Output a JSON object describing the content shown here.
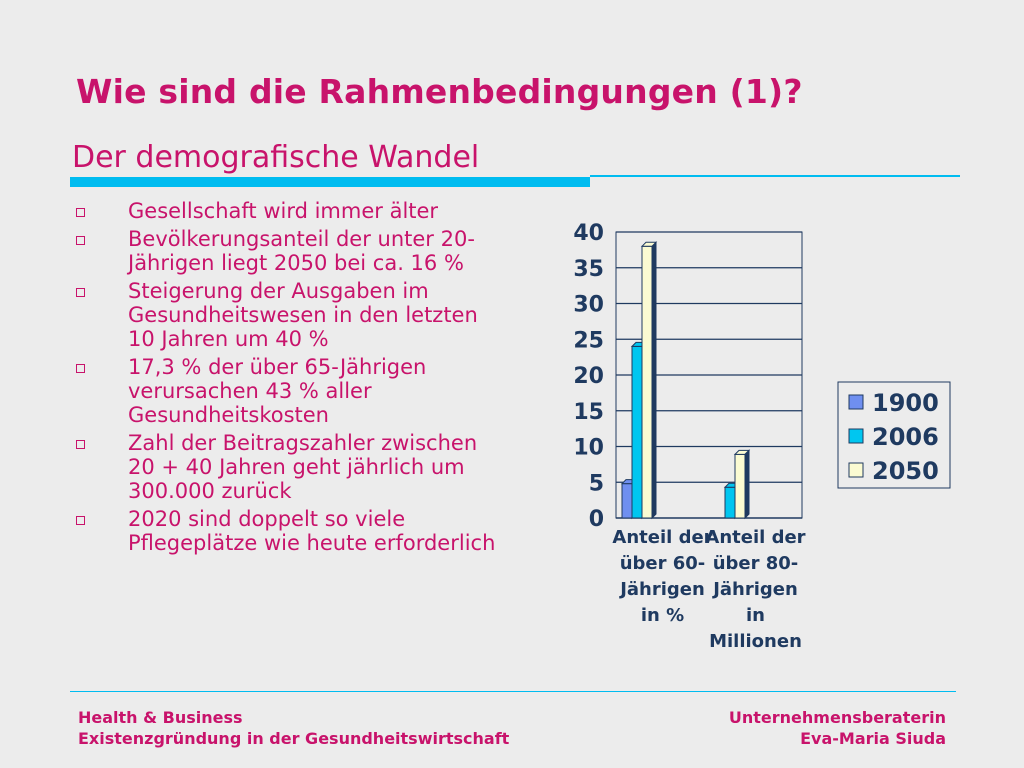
{
  "slide": {
    "title": "Wie sind die Rahmenbedingungen (1)?",
    "subtitle": "Der demografische Wandel"
  },
  "bullets": [
    "Gesellschaft wird immer älter",
    "Bevölkerungsanteil der unter 20-Jährigen liegt 2050 bei ca. 16 %",
    "Steigerung der Ausgaben im Gesundheitswesen in den letzten 10 Jahren um 40 %",
    "17,3 % der über 65-Jährigen verursachen 43 % aller Gesundheitskosten",
    "Zahl der Beitragszahler zwischen 20 + 40 Jahren geht jährlich um 300.000 zurück",
    "2020 sind doppelt so viele Pflegeplätze wie heute erforderlich"
  ],
  "footer": {
    "left_line1": "Health & Business",
    "left_line2": "Existenzgründung in der Gesundheitswirtschaft",
    "right_line1": "Unternehmensberaterin",
    "right_line2": "Eva-Maria Siuda"
  },
  "colors": {
    "accent": "#c8136b",
    "rule": "#00bcf0",
    "text_dark": "#1f3a60"
  },
  "chart_data": {
    "type": "bar",
    "categories": [
      [
        "Anteil der",
        "über 60-",
        "Jährigen",
        "in %"
      ],
      [
        "Anteil der",
        "über 80-",
        "Jährigen",
        "in",
        "Millionen"
      ]
    ],
    "series": [
      {
        "name": "1900",
        "values": [
          4.8,
          0
        ],
        "color": "#6f8ff0"
      },
      {
        "name": "2006",
        "values": [
          24,
          4.3
        ],
        "color": "#00c6f0"
      },
      {
        "name": "2050",
        "values": [
          38,
          8.9
        ],
        "color": "#fbfbd2"
      }
    ],
    "ylim": [
      0,
      40
    ],
    "yticks": [
      "0",
      "5",
      "10",
      "15",
      "20",
      "25",
      "30",
      "35",
      "40"
    ],
    "grid": true,
    "legend": "right",
    "bar_style": "3d"
  }
}
